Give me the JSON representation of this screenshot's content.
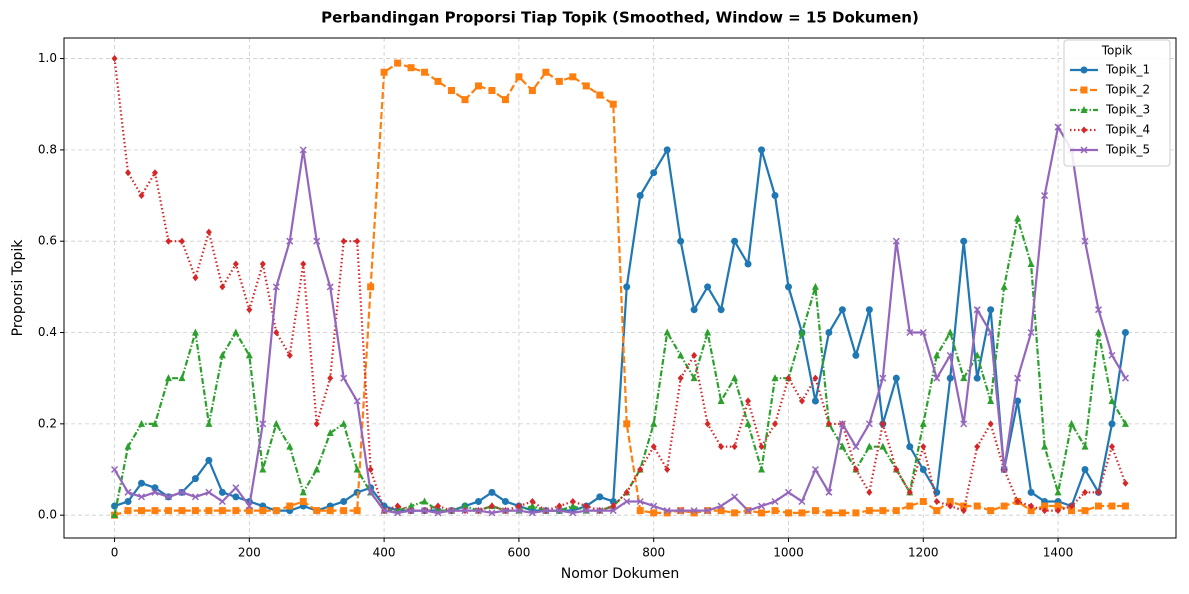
{
  "chart_data": {
    "type": "line",
    "title": "Perbandingan Proporsi Tiap Topik (Smoothed, Window = 15 Dokumen)",
    "xlabel": "Nomor Dokumen",
    "ylabel": "Proporsi Topik",
    "legend_title": "Topik",
    "legend": "upper right",
    "grid": true,
    "xlim": [
      -75,
      1575
    ],
    "ylim": [
      -0.05,
      1.045
    ],
    "xticks": [
      0,
      200,
      400,
      600,
      800,
      1000,
      1200,
      1400
    ],
    "yticks": [
      {
        "value": 0,
        "label": "0.0"
      },
      0.2,
      0.4,
      0.6,
      0.8,
      {
        "value": 1,
        "label": "1.0"
      }
    ],
    "x": [
      0,
      20,
      40,
      60,
      80,
      100,
      120,
      140,
      160,
      180,
      200,
      220,
      240,
      260,
      280,
      300,
      320,
      340,
      360,
      380,
      400,
      420,
      440,
      460,
      480,
      500,
      520,
      540,
      560,
      580,
      600,
      620,
      640,
      660,
      680,
      700,
      720,
      740,
      760,
      780,
      800,
      820,
      840,
      860,
      880,
      900,
      920,
      940,
      960,
      980,
      1000,
      1020,
      1040,
      1060,
      1080,
      1100,
      1120,
      1140,
      1160,
      1180,
      1200,
      1220,
      1240,
      1260,
      1280,
      1300,
      1320,
      1340,
      1360,
      1380,
      1400,
      1420,
      1440,
      1460,
      1480,
      1500
    ],
    "series": [
      {
        "name": "Topik_1",
        "color": "#1f77b4",
        "marker": "circle",
        "linestyle": "solid",
        "values": [
          0.02,
          0.03,
          0.07,
          0.06,
          0.04,
          0.05,
          0.08,
          0.12,
          0.05,
          0.04,
          0.03,
          0.02,
          0.01,
          0.01,
          0.02,
          0.01,
          0.02,
          0.03,
          0.05,
          0.06,
          0.02,
          0.01,
          0.01,
          0.01,
          0.01,
          0.01,
          0.02,
          0.03,
          0.05,
          0.03,
          0.02,
          0.01,
          0.01,
          0.01,
          0.01,
          0.02,
          0.04,
          0.03,
          0.5,
          0.7,
          0.75,
          0.8,
          0.6,
          0.45,
          0.5,
          0.45,
          0.6,
          0.55,
          0.8,
          0.7,
          0.5,
          0.4,
          0.25,
          0.4,
          0.45,
          0.35,
          0.45,
          0.2,
          0.3,
          0.15,
          0.1,
          0.05,
          0.3,
          0.6,
          0.3,
          0.45,
          0.1,
          0.25,
          0.05,
          0.03,
          0.03,
          0.02,
          0.1,
          0.05,
          0.2,
          0.4
        ]
      },
      {
        "name": "Topik_2",
        "color": "#ff7f0e",
        "marker": "square",
        "linestyle": "dashed",
        "values": [
          0,
          0.01,
          0.01,
          0.01,
          0.01,
          0.01,
          0.01,
          0.01,
          0.01,
          0.01,
          0.01,
          0.01,
          0.01,
          0.02,
          0.03,
          0.01,
          0.01,
          0.01,
          0.01,
          0.5,
          0.97,
          0.99,
          0.98,
          0.97,
          0.95,
          0.93,
          0.91,
          0.94,
          0.93,
          0.91,
          0.96,
          0.93,
          0.97,
          0.95,
          0.96,
          0.94,
          0.92,
          0.9,
          0.2,
          0.01,
          0.005,
          0.005,
          0.01,
          0.005,
          0.01,
          0.01,
          0.005,
          0.01,
          0.005,
          0.01,
          0.005,
          0.005,
          0.01,
          0.005,
          0.005,
          0.005,
          0.01,
          0.01,
          0.01,
          0.02,
          0.03,
          0.01,
          0.03,
          0.02,
          0.02,
          0.01,
          0.02,
          0.03,
          0.01,
          0.02,
          0.02,
          0.01,
          0.01,
          0.02,
          0.02,
          0.02
        ]
      },
      {
        "name": "Topik_3",
        "color": "#2ca02c",
        "marker": "triangle",
        "linestyle": "dashdot",
        "values": [
          0,
          0.15,
          0.2,
          0.2,
          0.3,
          0.3,
          0.4,
          0.2,
          0.35,
          0.4,
          0.35,
          0.1,
          0.2,
          0.15,
          0.05,
          0.1,
          0.18,
          0.2,
          0.1,
          0.05,
          0.01,
          0.01,
          0.02,
          0.03,
          0.01,
          0.01,
          0.02,
          0.01,
          0.02,
          0.01,
          0.01,
          0.02,
          0.01,
          0.01,
          0.02,
          0.01,
          0.01,
          0.02,
          0.05,
          0.1,
          0.2,
          0.4,
          0.35,
          0.3,
          0.4,
          0.25,
          0.3,
          0.2,
          0.1,
          0.3,
          0.3,
          0.4,
          0.5,
          0.2,
          0.15,
          0.1,
          0.15,
          0.15,
          0.1,
          0.05,
          0.2,
          0.35,
          0.4,
          0.3,
          0.35,
          0.25,
          0.5,
          0.65,
          0.55,
          0.15,
          0.05,
          0.2,
          0.15,
          0.4,
          0.25,
          0.2
        ]
      },
      {
        "name": "Topik_4",
        "color": "#d62728",
        "marker": "diamond",
        "linestyle": "dotted",
        "values": [
          1,
          0.75,
          0.7,
          0.75,
          0.6,
          0.6,
          0.52,
          0.62,
          0.5,
          0.55,
          0.45,
          0.55,
          0.4,
          0.35,
          0.55,
          0.2,
          0.3,
          0.6,
          0.6,
          0.1,
          0.01,
          0.02,
          0.01,
          0.01,
          0.02,
          0.01,
          0.01,
          0.01,
          0.02,
          0.01,
          0.02,
          0.03,
          0.01,
          0.02,
          0.03,
          0.02,
          0.01,
          0.02,
          0.05,
          0.1,
          0.15,
          0.1,
          0.3,
          0.35,
          0.2,
          0.15,
          0.15,
          0.25,
          0.15,
          0.2,
          0.3,
          0.25,
          0.3,
          0.2,
          0.2,
          0.1,
          0.05,
          0.2,
          0.1,
          0.05,
          0.15,
          0.03,
          0.02,
          0.01,
          0.15,
          0.2,
          0.1,
          0.03,
          0.02,
          0.01,
          0.01,
          0.02,
          0.05,
          0.05,
          0.15,
          0.07
        ]
      },
      {
        "name": "Topik_5",
        "color": "#9467bd",
        "marker": "x",
        "linestyle": "solid",
        "values": [
          0.1,
          0.05,
          0.04,
          0.05,
          0.04,
          0.05,
          0.04,
          0.05,
          0.03,
          0.06,
          0.02,
          0.2,
          0.5,
          0.6,
          0.8,
          0.6,
          0.5,
          0.3,
          0.25,
          0.05,
          0.01,
          0.005,
          0.01,
          0.01,
          0.005,
          0.01,
          0.01,
          0.01,
          0.005,
          0.01,
          0.01,
          0.005,
          0.01,
          0.01,
          0.005,
          0.01,
          0.01,
          0.01,
          0.03,
          0.03,
          0.02,
          0.01,
          0.01,
          0.01,
          0.01,
          0.02,
          0.04,
          0.01,
          0.02,
          0.03,
          0.05,
          0.03,
          0.1,
          0.05,
          0.2,
          0.15,
          0.2,
          0.3,
          0.6,
          0.4,
          0.4,
          0.3,
          0.35,
          0.2,
          0.45,
          0.4,
          0.1,
          0.3,
          0.4,
          0.7,
          0.85,
          0.8,
          0.6,
          0.45,
          0.35,
          0.3
        ]
      }
    ]
  }
}
